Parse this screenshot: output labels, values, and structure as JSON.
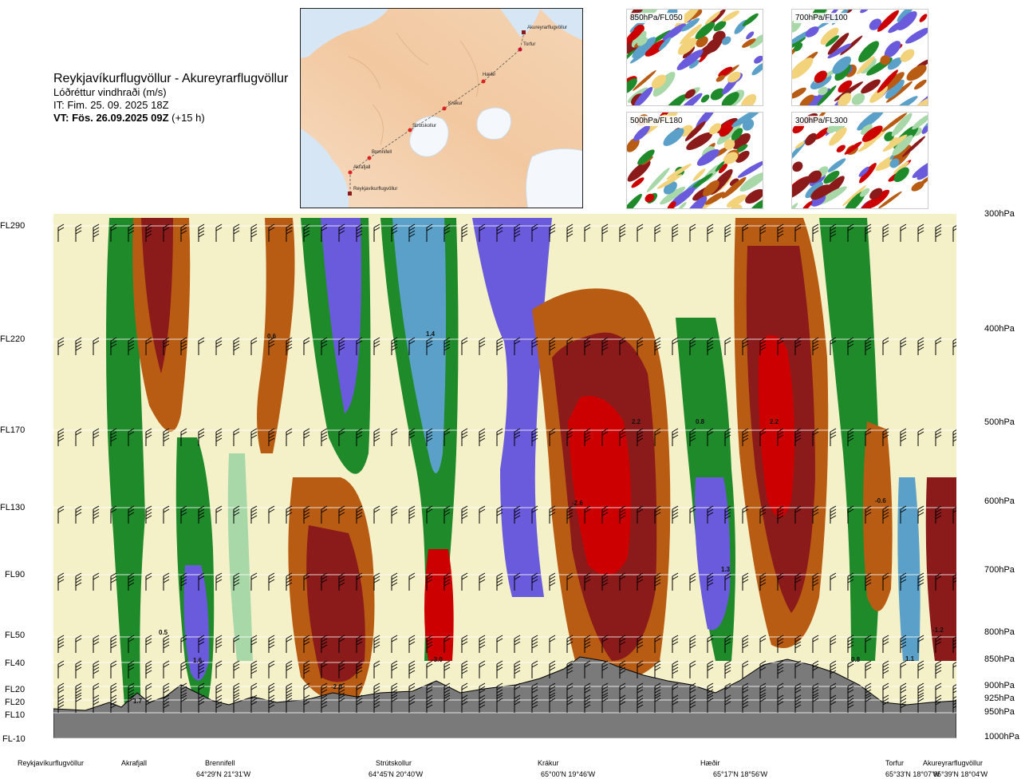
{
  "header": {
    "title": "Reykjavíkurflugvöllur - Akureyrarflugvöllur",
    "subtitle": "Lóðréttur vindhraði (m/s)",
    "issue_time": "IT: Fim. 25. 09. 2025 18Z",
    "valid_prefix": "VT: Fös. 26.09.2025 09Z",
    "valid_suffix": "(+15 h)"
  },
  "route_map": {
    "points": [
      {
        "name": "Akureyrarflugvöllur",
        "kind": "airport"
      },
      {
        "name": "Torfur",
        "kind": "waypoint"
      },
      {
        "name": "Hæðir",
        "kind": "waypoint"
      },
      {
        "name": "Krákur",
        "kind": "waypoint"
      },
      {
        "name": "Strútskollur",
        "kind": "waypoint"
      },
      {
        "name": "Brennifell",
        "kind": "waypoint"
      },
      {
        "name": "Akrafjall",
        "kind": "waypoint"
      },
      {
        "name": "Reykjavíkurflugvöllur",
        "kind": "airport"
      }
    ]
  },
  "thumbnails": [
    {
      "label": "850hPa/FL050"
    },
    {
      "label": "700hPa/FL100"
    },
    {
      "label": "500hPa/FL180"
    },
    {
      "label": "300hPa/FL300"
    }
  ],
  "colors": {
    "strong_down": "#cc0000",
    "down": "#8b1a1a",
    "weak_down": "#b85c14",
    "neutral_warm": "#f2d27a",
    "neutral_cool": "#f4f0c8",
    "weak_up": "#a8d8a8",
    "up": "#1e8a2a",
    "strong_up": "#5aa0c8",
    "very_strong_up": "#6a5adc",
    "terrain": "#7a7a7a"
  },
  "chart_data": {
    "type": "heatmap",
    "title": "Lóðréttur vindhraði (m/s)",
    "xlabel": "",
    "ylabel": "",
    "flight_levels": [
      "FL290",
      "FL220",
      "FL170",
      "FL130",
      "FL90",
      "FL50",
      "FL40",
      "FL20",
      "FL20",
      "FL10",
      "FL-10"
    ],
    "pressure_levels": [
      "300hPa",
      "400hPa",
      "500hPa",
      "600hPa",
      "700hPa",
      "800hPa",
      "850hPa",
      "900hPa",
      "925hPa",
      "950hPa",
      "1000hPa"
    ],
    "stations": [
      {
        "name": "Reykjavíkurflugvöllur",
        "coord": ""
      },
      {
        "name": "Akrafjall",
        "coord": ""
      },
      {
        "name": "Brennifell",
        "coord": "64°29'N 21°31'W"
      },
      {
        "name": "Strútskollur",
        "coord": "64°45'N 20°40'W"
      },
      {
        "name": "Krákur",
        "coord": "65°00'N 19°46'W"
      },
      {
        "name": "Hæðir",
        "coord": "65°17'N 18°56'W"
      },
      {
        "name": "Torfur",
        "coord": "65°33'N 18°07'W"
      },
      {
        "name": "Akureyrarflugvöllur",
        "coord": "65°39'N 18°04'W"
      }
    ],
    "contour_labels": [
      "0.6",
      "1.4",
      "2.2",
      "0.8",
      "2.2",
      "-2.6",
      "-0.6",
      "1.3",
      "0.5",
      "1.6",
      "-2.0",
      "-3.0",
      "0.8",
      "1.1",
      "-1.2",
      "1.7"
    ]
  }
}
